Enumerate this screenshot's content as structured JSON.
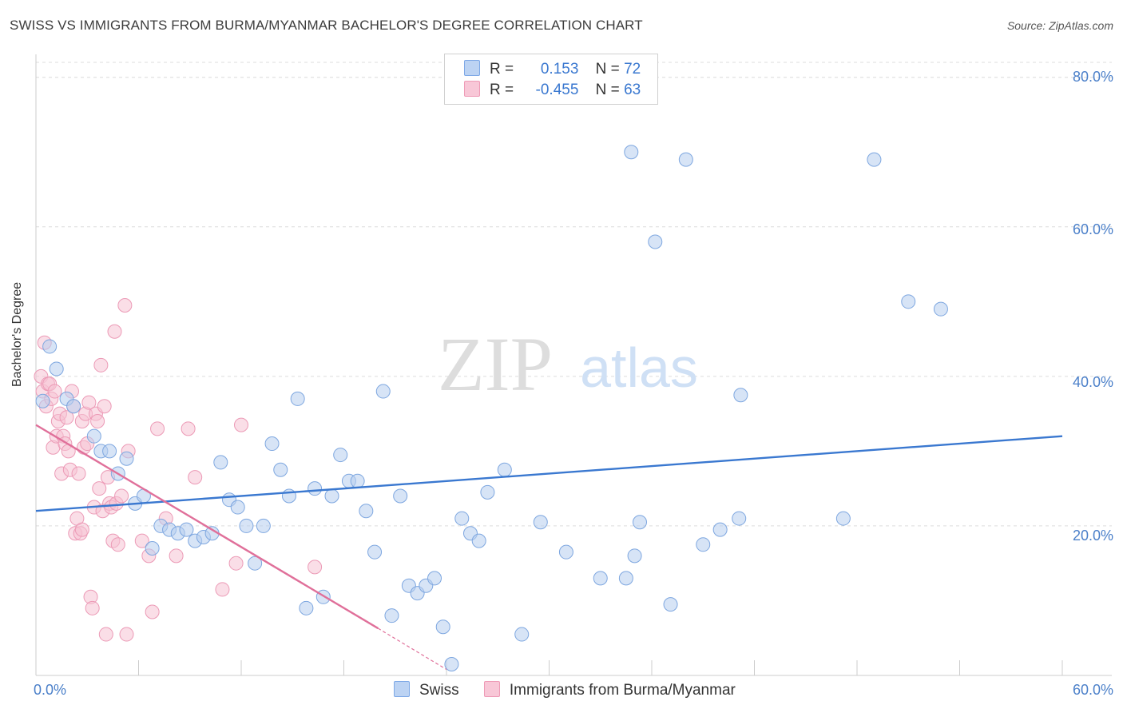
{
  "title": "SWISS VS IMMIGRANTS FROM BURMA/MYANMAR BACHELOR'S DEGREE CORRELATION CHART",
  "source": "Source: ZipAtlas.com",
  "watermark": {
    "zip": "ZIP",
    "atlas": "atlas"
  },
  "stats": [
    {
      "r_label": "R =",
      "r_value": "0.153",
      "n_label": "N =",
      "n_value": "72"
    },
    {
      "r_label": "R =",
      "r_value": "-0.455",
      "n_label": "N =",
      "n_value": "63"
    }
  ],
  "legend": {
    "swiss": "Swiss",
    "burma": "Immigrants from Burma/Myanmar"
  },
  "axis": {
    "ylabel": "Bachelor's Degree",
    "y_ticks": [
      "80.0%",
      "60.0%",
      "40.0%",
      "20.0%"
    ],
    "x_left": "0.0%",
    "x_right": "60.0%"
  },
  "colors": {
    "swiss": "#3a78d0",
    "burma": "#e0709a",
    "swiss_fill": "#b7cdef",
    "burma_fill": "#f6c2d3",
    "grid": "#dcdcdc"
  },
  "chart_data": {
    "type": "scatter",
    "xlim": [
      0,
      0.6
    ],
    "ylim": [
      0,
      0.82
    ],
    "series": [
      {
        "name": "Swiss",
        "trend": [
          [
            0,
            0.22
          ],
          [
            0.6,
            0.32
          ]
        ],
        "points": [
          [
            0.004,
            0.367
          ],
          [
            0.008,
            0.44
          ],
          [
            0.012,
            0.41
          ],
          [
            0.018,
            0.37
          ],
          [
            0.022,
            0.36
          ],
          [
            0.034,
            0.32
          ],
          [
            0.038,
            0.3
          ],
          [
            0.043,
            0.3
          ],
          [
            0.048,
            0.27
          ],
          [
            0.053,
            0.29
          ],
          [
            0.058,
            0.23
          ],
          [
            0.063,
            0.24
          ],
          [
            0.068,
            0.17
          ],
          [
            0.073,
            0.2
          ],
          [
            0.078,
            0.195
          ],
          [
            0.083,
            0.19
          ],
          [
            0.088,
            0.195
          ],
          [
            0.093,
            0.18
          ],
          [
            0.098,
            0.185
          ],
          [
            0.103,
            0.19
          ],
          [
            0.108,
            0.285
          ],
          [
            0.113,
            0.235
          ],
          [
            0.118,
            0.225
          ],
          [
            0.123,
            0.2
          ],
          [
            0.128,
            0.15
          ],
          [
            0.133,
            0.2
          ],
          [
            0.138,
            0.31
          ],
          [
            0.143,
            0.275
          ],
          [
            0.148,
            0.24
          ],
          [
            0.153,
            0.37
          ],
          [
            0.158,
            0.09
          ],
          [
            0.163,
            0.25
          ],
          [
            0.168,
            0.105
          ],
          [
            0.173,
            0.24
          ],
          [
            0.178,
            0.295
          ],
          [
            0.183,
            0.26
          ],
          [
            0.188,
            0.26
          ],
          [
            0.193,
            0.22
          ],
          [
            0.198,
            0.165
          ],
          [
            0.203,
            0.38
          ],
          [
            0.208,
            0.08
          ],
          [
            0.213,
            0.24
          ],
          [
            0.218,
            0.12
          ],
          [
            0.223,
            0.11
          ],
          [
            0.228,
            0.12
          ],
          [
            0.233,
            0.13
          ],
          [
            0.238,
            0.065
          ],
          [
            0.243,
            0.015
          ],
          [
            0.249,
            0.21
          ],
          [
            0.254,
            0.19
          ],
          [
            0.259,
            0.18
          ],
          [
            0.264,
            0.245
          ],
          [
            0.274,
            0.275
          ],
          [
            0.284,
            0.055
          ],
          [
            0.295,
            0.205
          ],
          [
            0.31,
            0.165
          ],
          [
            0.33,
            0.13
          ],
          [
            0.348,
            0.7
          ],
          [
            0.35,
            0.16
          ],
          [
            0.362,
            0.58
          ],
          [
            0.353,
            0.205
          ],
          [
            0.371,
            0.095
          ],
          [
            0.38,
            0.69
          ],
          [
            0.39,
            0.175
          ],
          [
            0.4,
            0.195
          ],
          [
            0.412,
            0.375
          ],
          [
            0.345,
            0.13
          ],
          [
            0.411,
            0.21
          ],
          [
            0.472,
            0.21
          ],
          [
            0.49,
            0.69
          ],
          [
            0.51,
            0.5
          ],
          [
            0.529,
            0.49
          ]
        ]
      },
      {
        "name": "Immigrants from Burma/Myanmar",
        "trend": [
          [
            0,
            0.335
          ],
          [
            0.2,
            0.063
          ]
        ],
        "trend_extension": [
          [
            0.2,
            0.063
          ],
          [
            0.24,
            0.008
          ]
        ],
        "points": [
          [
            0.003,
            0.4
          ],
          [
            0.004,
            0.38
          ],
          [
            0.005,
            0.445
          ],
          [
            0.006,
            0.36
          ],
          [
            0.007,
            0.39
          ],
          [
            0.008,
            0.39
          ],
          [
            0.009,
            0.37
          ],
          [
            0.01,
            0.305
          ],
          [
            0.011,
            0.38
          ],
          [
            0.012,
            0.32
          ],
          [
            0.013,
            0.34
          ],
          [
            0.014,
            0.35
          ],
          [
            0.015,
            0.27
          ],
          [
            0.016,
            0.32
          ],
          [
            0.017,
            0.31
          ],
          [
            0.018,
            0.345
          ],
          [
            0.019,
            0.3
          ],
          [
            0.02,
            0.275
          ],
          [
            0.021,
            0.38
          ],
          [
            0.022,
            0.36
          ],
          [
            0.023,
            0.19
          ],
          [
            0.024,
            0.21
          ],
          [
            0.025,
            0.27
          ],
          [
            0.026,
            0.19
          ],
          [
            0.027,
            0.34
          ],
          [
            0.028,
            0.305
          ],
          [
            0.029,
            0.35
          ],
          [
            0.03,
            0.31
          ],
          [
            0.031,
            0.365
          ],
          [
            0.032,
            0.105
          ],
          [
            0.033,
            0.09
          ],
          [
            0.034,
            0.225
          ],
          [
            0.035,
            0.35
          ],
          [
            0.036,
            0.34
          ],
          [
            0.037,
            0.25
          ],
          [
            0.038,
            0.415
          ],
          [
            0.039,
            0.22
          ],
          [
            0.04,
            0.36
          ],
          [
            0.041,
            0.055
          ],
          [
            0.042,
            0.265
          ],
          [
            0.043,
            0.23
          ],
          [
            0.044,
            0.225
          ],
          [
            0.045,
            0.18
          ],
          [
            0.046,
            0.46
          ],
          [
            0.047,
            0.23
          ],
          [
            0.048,
            0.175
          ],
          [
            0.05,
            0.24
          ],
          [
            0.052,
            0.495
          ],
          [
            0.053,
            0.055
          ],
          [
            0.054,
            0.3
          ],
          [
            0.062,
            0.18
          ],
          [
            0.066,
            0.16
          ],
          [
            0.068,
            0.085
          ],
          [
            0.071,
            0.33
          ],
          [
            0.076,
            0.21
          ],
          [
            0.082,
            0.16
          ],
          [
            0.089,
            0.33
          ],
          [
            0.093,
            0.265
          ],
          [
            0.109,
            0.115
          ],
          [
            0.117,
            0.15
          ],
          [
            0.12,
            0.335
          ],
          [
            0.163,
            0.145
          ],
          [
            0.027,
            0.195
          ]
        ]
      }
    ]
  }
}
